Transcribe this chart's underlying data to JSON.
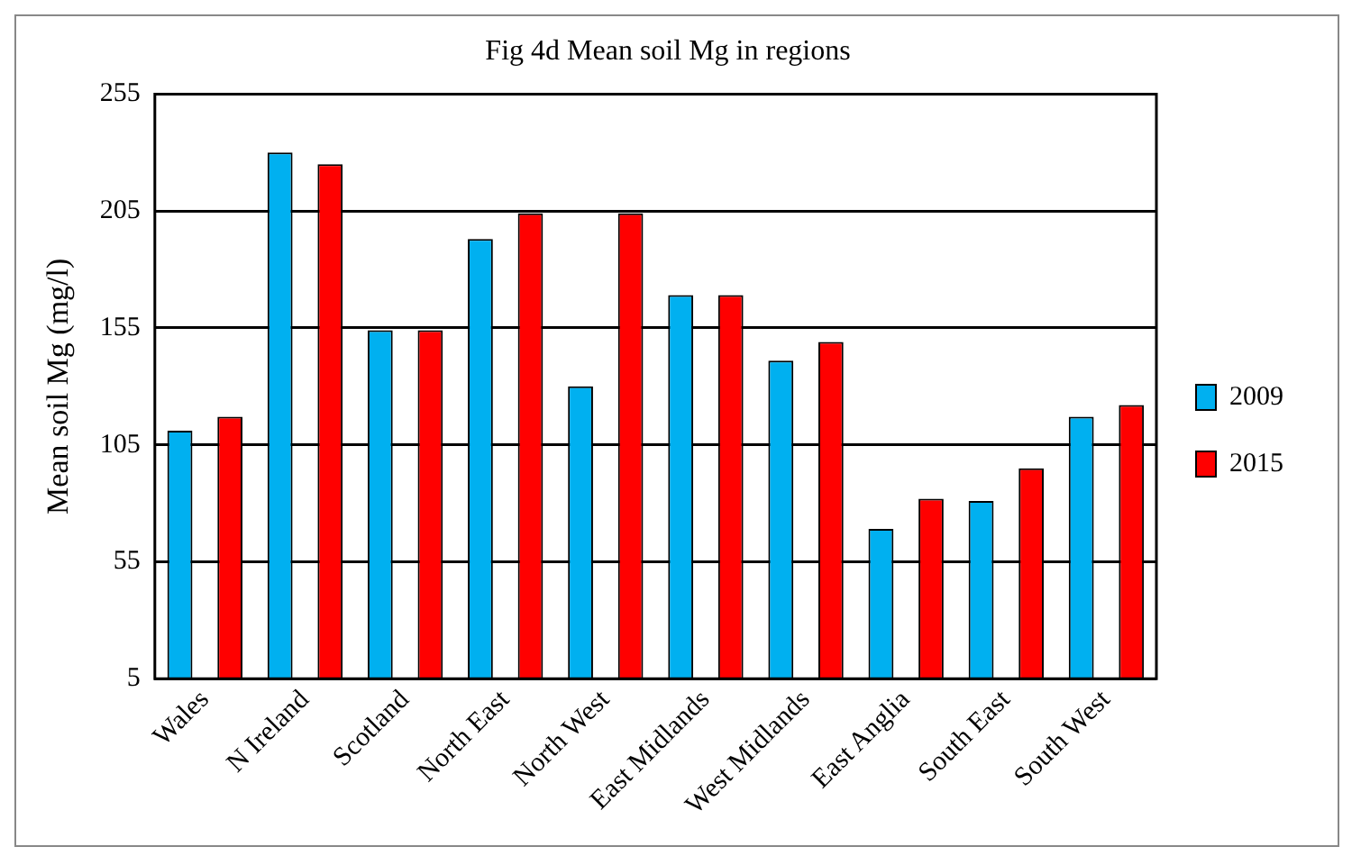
{
  "chart_data": {
    "type": "bar",
    "title": "Fig 4d Mean soil Mg in regions",
    "ylabel": "Mean soil Mg (mg/l)",
    "categories": [
      "Wales",
      "N Ireland",
      "Scotland",
      "North East",
      "North West",
      "East Midlands",
      "West Midlands",
      "East Anglia",
      "South East",
      "South West"
    ],
    "series": [
      {
        "name": "2009",
        "color": "#00b0f0",
        "values": [
          111,
          230,
          154,
          193,
          130,
          169,
          141,
          69,
          81,
          117
        ]
      },
      {
        "name": "2015",
        "color": "#ff0000",
        "values": [
          117,
          225,
          154,
          204,
          204,
          169,
          149,
          82,
          95,
          122
        ]
      }
    ],
    "ylim": [
      5,
      255
    ],
    "yticks": [
      5,
      55,
      105,
      155,
      205,
      255
    ],
    "grid": "y",
    "legend": "right"
  }
}
